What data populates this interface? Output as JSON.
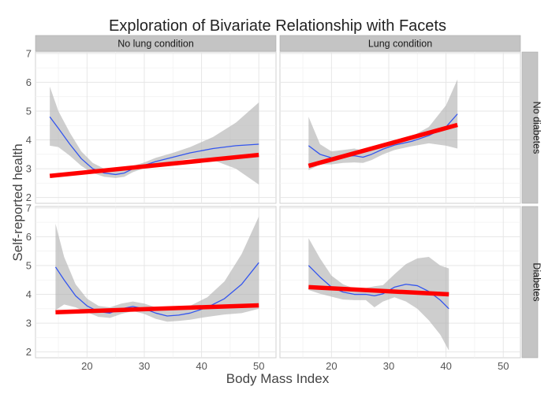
{
  "chart_data": {
    "type": "line",
    "title": "Exploration of Bivariate Relationship with Facets",
    "xlabel": "Body Mass Index",
    "ylabel": "Self-reported health",
    "xlim": [
      11,
      53
    ],
    "ylim": [
      1.8,
      7.05
    ],
    "x_ticks": [
      20,
      30,
      40,
      50
    ],
    "y_ticks": [
      2,
      3,
      4,
      5,
      6,
      7
    ],
    "column_facets": [
      "No lung condition",
      "Lung condition"
    ],
    "row_facets": [
      "No diabetes",
      "Diabetes"
    ],
    "colors": {
      "smooth": "#3355ee",
      "linear_fit": "#ff0000",
      "band": "#b0b0b0"
    },
    "panels": [
      {
        "col": "No lung condition",
        "row": "No diabetes",
        "smooth": [
          [
            13.5,
            4.8
          ],
          [
            15,
            4.4
          ],
          [
            17,
            3.85
          ],
          [
            19,
            3.35
          ],
          [
            21,
            3.0
          ],
          [
            23,
            2.85
          ],
          [
            25,
            2.8
          ],
          [
            26.5,
            2.85
          ],
          [
            28,
            3.0
          ],
          [
            30,
            3.12
          ],
          [
            32,
            3.25
          ],
          [
            35,
            3.4
          ],
          [
            38,
            3.55
          ],
          [
            42,
            3.7
          ],
          [
            46,
            3.8
          ],
          [
            50,
            3.85
          ]
        ],
        "band_upper": [
          [
            13.5,
            5.85
          ],
          [
            15,
            5.0
          ],
          [
            17,
            4.25
          ],
          [
            19,
            3.6
          ],
          [
            21,
            3.2
          ],
          [
            23,
            3.0
          ],
          [
            25,
            2.95
          ],
          [
            26.5,
            3.0
          ],
          [
            28,
            3.1
          ],
          [
            30,
            3.22
          ],
          [
            32,
            3.38
          ],
          [
            35,
            3.55
          ],
          [
            38,
            3.75
          ],
          [
            42,
            4.1
          ],
          [
            46,
            4.6
          ],
          [
            50,
            5.3
          ]
        ],
        "band_lower": [
          [
            13.5,
            3.8
          ],
          [
            15,
            3.75
          ],
          [
            17,
            3.45
          ],
          [
            19,
            3.1
          ],
          [
            21,
            2.85
          ],
          [
            23,
            2.72
          ],
          [
            25,
            2.68
          ],
          [
            26.5,
            2.72
          ],
          [
            28,
            2.88
          ],
          [
            30,
            3.02
          ],
          [
            32,
            3.12
          ],
          [
            35,
            3.25
          ],
          [
            38,
            3.35
          ],
          [
            42,
            3.3
          ],
          [
            46,
            3.0
          ],
          [
            50,
            2.45
          ]
        ],
        "fit": [
          [
            13.5,
            2.75
          ],
          [
            50,
            3.48
          ]
        ]
      },
      {
        "col": "Lung condition",
        "row": "No diabetes",
        "smooth": [
          [
            16,
            3.8
          ],
          [
            18,
            3.5
          ],
          [
            20,
            3.38
          ],
          [
            22,
            3.42
          ],
          [
            24,
            3.45
          ],
          [
            25.5,
            3.4
          ],
          [
            27,
            3.5
          ],
          [
            29,
            3.68
          ],
          [
            31,
            3.82
          ],
          [
            34,
            3.95
          ],
          [
            37,
            4.15
          ],
          [
            40,
            4.45
          ],
          [
            42,
            4.9
          ]
        ],
        "band_upper": [
          [
            16,
            4.8
          ],
          [
            18,
            3.85
          ],
          [
            20,
            3.6
          ],
          [
            22,
            3.65
          ],
          [
            24,
            3.7
          ],
          [
            25.5,
            3.62
          ],
          [
            27,
            3.7
          ],
          [
            29,
            3.85
          ],
          [
            31,
            3.98
          ],
          [
            34,
            4.12
          ],
          [
            37,
            4.45
          ],
          [
            40,
            5.2
          ],
          [
            42,
            6.1
          ]
        ],
        "band_lower": [
          [
            16,
            2.95
          ],
          [
            18,
            3.15
          ],
          [
            20,
            3.15
          ],
          [
            22,
            3.2
          ],
          [
            24,
            3.22
          ],
          [
            25.5,
            3.2
          ],
          [
            27,
            3.3
          ],
          [
            29,
            3.5
          ],
          [
            31,
            3.65
          ],
          [
            34,
            3.78
          ],
          [
            37,
            3.88
          ],
          [
            40,
            3.8
          ],
          [
            42,
            3.7
          ]
        ],
        "fit": [
          [
            16,
            3.1
          ],
          [
            42,
            4.52
          ]
        ]
      },
      {
        "col": "No lung condition",
        "row": "Diabetes",
        "smooth": [
          [
            14.5,
            4.95
          ],
          [
            16,
            4.5
          ],
          [
            18,
            3.95
          ],
          [
            20,
            3.6
          ],
          [
            22,
            3.4
          ],
          [
            24,
            3.35
          ],
          [
            26,
            3.5
          ],
          [
            28,
            3.58
          ],
          [
            30,
            3.5
          ],
          [
            32,
            3.35
          ],
          [
            34,
            3.25
          ],
          [
            36,
            3.28
          ],
          [
            38,
            3.35
          ],
          [
            41,
            3.55
          ],
          [
            44,
            3.85
          ],
          [
            47,
            4.35
          ],
          [
            50,
            5.1
          ]
        ],
        "band_upper": [
          [
            14.5,
            6.45
          ],
          [
            16,
            5.3
          ],
          [
            18,
            4.35
          ],
          [
            20,
            3.85
          ],
          [
            22,
            3.6
          ],
          [
            24,
            3.55
          ],
          [
            26,
            3.68
          ],
          [
            28,
            3.75
          ],
          [
            30,
            3.68
          ],
          [
            32,
            3.55
          ],
          [
            34,
            3.45
          ],
          [
            36,
            3.5
          ],
          [
            38,
            3.6
          ],
          [
            41,
            3.9
          ],
          [
            44,
            4.45
          ],
          [
            47,
            5.4
          ],
          [
            50,
            6.7
          ]
        ],
        "band_lower": [
          [
            14.5,
            3.45
          ],
          [
            16,
            3.65
          ],
          [
            18,
            3.55
          ],
          [
            20,
            3.38
          ],
          [
            22,
            3.22
          ],
          [
            24,
            3.18
          ],
          [
            26,
            3.32
          ],
          [
            28,
            3.42
          ],
          [
            30,
            3.32
          ],
          [
            32,
            3.15
          ],
          [
            34,
            3.05
          ],
          [
            36,
            3.08
          ],
          [
            38,
            3.12
          ],
          [
            41,
            3.22
          ],
          [
            44,
            3.3
          ],
          [
            47,
            3.35
          ],
          [
            50,
            3.5
          ]
        ],
        "fit": [
          [
            14.5,
            3.38
          ],
          [
            50,
            3.62
          ]
        ]
      },
      {
        "col": "Lung condition",
        "row": "Diabetes",
        "smooth": [
          [
            16,
            5.0
          ],
          [
            18,
            4.6
          ],
          [
            20,
            4.25
          ],
          [
            22,
            4.08
          ],
          [
            24,
            4.0
          ],
          [
            26,
            4.0
          ],
          [
            27.5,
            3.95
          ],
          [
            29,
            4.02
          ],
          [
            31,
            4.25
          ],
          [
            33,
            4.35
          ],
          [
            35,
            4.3
          ],
          [
            37,
            4.1
          ],
          [
            39,
            3.8
          ],
          [
            40.5,
            3.5
          ]
        ],
        "band_upper": [
          [
            16,
            5.95
          ],
          [
            18,
            5.25
          ],
          [
            20,
            4.65
          ],
          [
            22,
            4.35
          ],
          [
            24,
            4.2
          ],
          [
            26,
            4.22
          ],
          [
            27.5,
            4.28
          ],
          [
            29,
            4.32
          ],
          [
            31,
            4.7
          ],
          [
            33,
            5.05
          ],
          [
            35,
            5.25
          ],
          [
            37,
            5.3
          ],
          [
            39,
            5.0
          ],
          [
            40.5,
            4.9
          ]
        ],
        "band_lower": [
          [
            16,
            4.15
          ],
          [
            18,
            4.02
          ],
          [
            20,
            3.92
          ],
          [
            22,
            3.82
          ],
          [
            24,
            3.8
          ],
          [
            26,
            3.8
          ],
          [
            27.5,
            3.55
          ],
          [
            29,
            3.75
          ],
          [
            31,
            3.9
          ],
          [
            33,
            3.75
          ],
          [
            35,
            3.5
          ],
          [
            37,
            3.1
          ],
          [
            39,
            2.6
          ],
          [
            40.5,
            2.05
          ]
        ],
        "fit": [
          [
            16,
            4.25
          ],
          [
            40.5,
            4.0
          ]
        ]
      }
    ]
  }
}
